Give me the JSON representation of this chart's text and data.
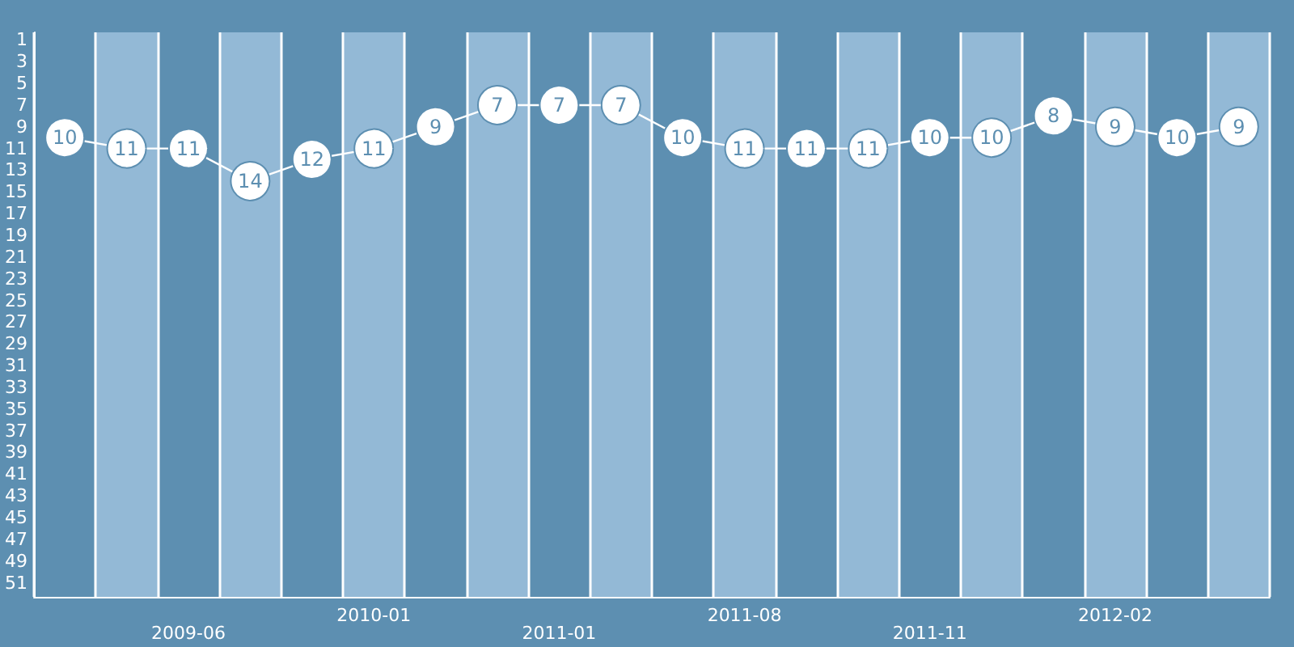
{
  "chart_data": {
    "type": "line",
    "categories": [
      null,
      null,
      "2009-06",
      null,
      null,
      "2010-01",
      null,
      null,
      "2011-01",
      null,
      null,
      "2011-08",
      null,
      null,
      "2011-11",
      null,
      null,
      "2012-02",
      null,
      null
    ],
    "series": [
      {
        "color": "#ffffff",
        "values": [
          10,
          11,
          11,
          14,
          12,
          11,
          9,
          7,
          7,
          7,
          10,
          11,
          11,
          11,
          10,
          10,
          8,
          9,
          10,
          9
        ]
      }
    ],
    "ylim": [
      52.3,
      0.3
    ],
    "yticks": [
      1,
      3,
      5,
      7,
      9,
      11,
      13,
      15,
      17,
      19,
      21,
      23,
      25,
      27,
      29,
      31,
      33,
      35,
      37,
      39,
      41,
      43,
      45,
      47,
      49,
      51
    ],
    "data_labels": true,
    "marker": "circle",
    "grid": "x"
  }
}
